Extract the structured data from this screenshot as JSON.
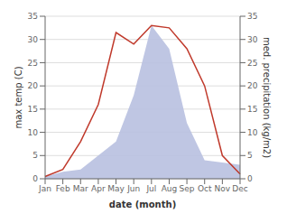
{
  "chart_data": {
    "type": "line",
    "categories": [
      "Jan",
      "Feb",
      "Mar",
      "Apr",
      "May",
      "Jun",
      "Jul",
      "Aug",
      "Sep",
      "Oct",
      "Nov",
      "Dec"
    ],
    "series": [
      {
        "type": "area",
        "color": "#b8c0e0",
        "axis": "y2",
        "values": [
          0.5,
          1.5,
          2.0,
          5.0,
          8.0,
          18.0,
          33.0,
          28.0,
          12.0,
          4.0,
          3.5,
          3.0
        ]
      },
      {
        "type": "line",
        "color": "#c0392b",
        "values": [
          0.5,
          2.0,
          8.0,
          16.0,
          31.5,
          29.0,
          33.0,
          32.5,
          28.0,
          20.0,
          5.0,
          1.0
        ]
      }
    ],
    "xlabel": "date (month)",
    "ylabel": "max temp (C)",
    "y2label": "med. precipitation (kg/m2)",
    "ylim": [
      0,
      35
    ],
    "yticks": [
      0,
      5,
      10,
      15,
      20,
      25,
      30,
      35
    ],
    "y2lim": [
      0,
      35
    ],
    "y2ticks": [
      0,
      5,
      10,
      15,
      20,
      25,
      30,
      35
    ],
    "grid": true
  }
}
